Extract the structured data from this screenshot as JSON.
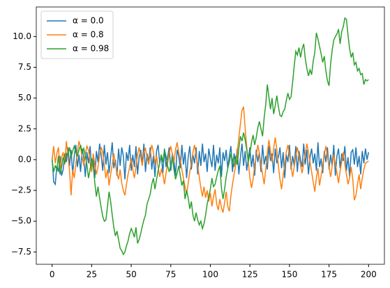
{
  "chart_data": {
    "type": "line",
    "x": [
      0,
      1,
      2,
      3,
      4,
      5,
      6,
      7,
      8,
      9,
      10,
      11,
      12,
      13,
      14,
      15,
      16,
      17,
      18,
      19,
      20,
      21,
      22,
      23,
      24,
      25,
      26,
      27,
      28,
      29,
      30,
      31,
      32,
      33,
      34,
      35,
      36,
      37,
      38,
      39,
      40,
      41,
      42,
      43,
      44,
      45,
      46,
      47,
      48,
      49,
      50,
      51,
      52,
      53,
      54,
      55,
      56,
      57,
      58,
      59,
      60,
      61,
      62,
      63,
      64,
      65,
      66,
      67,
      68,
      69,
      70,
      71,
      72,
      73,
      74,
      75,
      76,
      77,
      78,
      79,
      80,
      81,
      82,
      83,
      84,
      85,
      86,
      87,
      88,
      89,
      90,
      91,
      92,
      93,
      94,
      95,
      96,
      97,
      98,
      99,
      100,
      101,
      102,
      103,
      104,
      105,
      106,
      107,
      108,
      109,
      110,
      111,
      112,
      113,
      114,
      115,
      116,
      117,
      118,
      119,
      120,
      121,
      122,
      123,
      124,
      125,
      126,
      127,
      128,
      129,
      130,
      131,
      132,
      133,
      134,
      135,
      136,
      137,
      138,
      139,
      140,
      141,
      142,
      143,
      144,
      145,
      146,
      147,
      148,
      149,
      150,
      151,
      152,
      153,
      154,
      155,
      156,
      157,
      158,
      159,
      160,
      161,
      162,
      163,
      164,
      165,
      166,
      167,
      168,
      169,
      170,
      171,
      172,
      173,
      174,
      175,
      176,
      177,
      178,
      179,
      180,
      181,
      182,
      183,
      184,
      185,
      186,
      187,
      188,
      189,
      190,
      191,
      192,
      193,
      194,
      195,
      196,
      197,
      198,
      199,
      200
    ],
    "series": [
      {
        "name": "α = 0.0",
        "color": "#1f77b4",
        "values": [
          0.2,
          -1.8,
          -2.0,
          -0.5,
          -1.0,
          0.3,
          -1.3,
          -0.8,
          0.5,
          -0.2,
          1.0,
          -0.5,
          0.8,
          -1.2,
          0.3,
          1.2,
          -0.6,
          0.4,
          -1.0,
          0.9,
          0.2,
          -1.4,
          0.6,
          -0.3,
          1.1,
          -0.8,
          0.1,
          -1.5,
          0.7,
          -0.2,
          1.3,
          0.4,
          -0.9,
          1.2,
          -0.4,
          0.6,
          -1.1,
          0.2,
          1.4,
          -0.7,
          0.0,
          -1.3,
          0.9,
          -0.5,
          1.0,
          0.3,
          -1.6,
          0.6,
          -0.1,
          1.2,
          -0.9,
          0.4,
          -0.6,
          1.1,
          -1.2,
          0.2,
          0.8,
          -0.4,
          1.3,
          -1.0,
          0.5,
          -0.2,
          1.0,
          -0.8,
          0.3,
          -1.4,
          0.7,
          1.2,
          -0.3,
          0.4,
          -1.1,
          0.9,
          -0.6,
          0.2,
          1.0,
          -0.9,
          0.5,
          -0.1,
          -1.3,
          0.8,
          0.3,
          -0.7,
          1.2,
          -0.4,
          0.6,
          -1.5,
          0.2,
          1.1,
          -0.8,
          0.4,
          -0.3,
          1.0,
          -1.2,
          0.7,
          -0.5,
          1.3,
          -0.2,
          0.5,
          -1.0,
          0.9,
          0.1,
          -0.6,
          1.2,
          -0.9,
          0.4,
          -0.3,
          1.0,
          -1.4,
          0.6,
          -0.1,
          0.8,
          -0.7,
          0.3,
          1.1,
          -1.0,
          0.5,
          -0.4,
          0.9,
          -1.2,
          0.2,
          1.3,
          -0.5,
          0.7,
          -0.9,
          0.1,
          1.0,
          -0.6,
          0.4,
          -1.3,
          0.8,
          -0.2,
          0.6,
          -1.0,
          1.2,
          -0.4,
          0.3,
          -0.8,
          1.1,
          -0.1,
          0.5,
          -1.1,
          0.9,
          -0.3,
          0.2,
          1.0,
          -0.7,
          0.6,
          -1.5,
          0.4,
          -0.2,
          1.2,
          -0.8,
          0.3,
          -0.5,
          1.1,
          -1.0,
          0.7,
          0.0,
          -0.6,
          1.3,
          -0.4,
          0.8,
          -1.2,
          0.2,
          0.9,
          -0.3,
          0.5,
          -0.9,
          1.4,
          -0.6,
          0.1,
          -1.1,
          0.7,
          -0.2,
          1.0,
          -0.8,
          0.4,
          -0.5,
          1.2,
          -1.3,
          0.3,
          0.9,
          -0.7,
          0.5,
          -0.1,
          1.1,
          -0.9,
          0.2,
          -1.4,
          0.6,
          0.8,
          -0.4,
          1.0,
          -0.6,
          0.3,
          -1.2,
          0.7,
          -0.3,
          0.9,
          0.0,
          0.6
        ]
      },
      {
        "name": "α = 0.8",
        "color": "#ff7f0e",
        "values": [
          0.0,
          1.1,
          -0.3,
          0.5,
          1.0,
          -0.8,
          0.2,
          0.6,
          -0.4,
          1.5,
          0.3,
          -0.9,
          -2.9,
          -0.8,
          -1.5,
          -0.4,
          0.7,
          1.5,
          1.0,
          0.2,
          -0.5,
          0.4,
          1.1,
          0.8,
          -0.3,
          -1.0,
          0.5,
          -0.4,
          -1.2,
          -0.6,
          0.3,
          1.0,
          0.6,
          -0.5,
          -1.5,
          -0.8,
          -2.1,
          -1.2,
          -0.4,
          0.5,
          -0.3,
          -1.1,
          -1.6,
          -0.8,
          -1.9,
          -2.5,
          -2.9,
          -2.0,
          -1.2,
          -0.6,
          0.1,
          -0.8,
          -1.5,
          -0.6,
          0.4,
          1.0,
          0.2,
          -0.5,
          0.6,
          0.9,
          0.2,
          -0.4,
          0.5,
          1.2,
          0.6,
          -0.3,
          0.3,
          -0.6,
          -1.4,
          -0.8,
          -1.2,
          -2.0,
          -1.1,
          -0.3,
          0.5,
          1.1,
          0.4,
          -0.2,
          0.8,
          1.4,
          0.6,
          0.0,
          -0.8,
          -1.5,
          -2.2,
          -2.8,
          -1.9,
          -1.0,
          -0.3,
          0.6,
          1.2,
          0.4,
          -0.5,
          -1.4,
          -2.3,
          -3.0,
          -2.2,
          -3.1,
          -2.5,
          -3.4,
          -2.7,
          -3.8,
          -3.0,
          -2.4,
          -3.6,
          -4.1,
          -3.2,
          -3.9,
          -4.3,
          -3.5,
          -2.6,
          -3.8,
          -4.2,
          -2.9,
          -2.0,
          -1.2,
          -0.5,
          0.6,
          1.8,
          2.9,
          4.0,
          4.3,
          2.5,
          1.0,
          -0.2,
          -1.5,
          -2.3,
          -1.6,
          -0.5,
          0.3,
          1.2,
          0.5,
          -0.4,
          -1.2,
          -2.0,
          -0.8,
          0.5,
          1.6,
          0.7,
          -0.2,
          0.9,
          1.8,
          0.8,
          -0.5,
          -1.6,
          -2.4,
          -1.3,
          -0.4,
          0.6,
          1.2,
          0.4,
          -0.5,
          -1.4,
          -0.6,
          0.3,
          1.0,
          0.3,
          -0.5,
          -1.1,
          -0.3,
          0.5,
          1.3,
          0.6,
          -0.2,
          -1.0,
          -1.8,
          -2.6,
          -1.5,
          -0.7,
          -2.1,
          -1.3,
          -0.5,
          0.4,
          1.1,
          0.3,
          -0.6,
          -1.4,
          -0.5,
          0.4,
          -0.3,
          -1.1,
          -1.9,
          -0.9,
          -0.2,
          0.6,
          -0.4,
          -1.2,
          -2.0,
          -1.5,
          -0.6,
          -1.6,
          -3.3,
          -2.9,
          -2.0,
          -1.2,
          -2.4,
          -1.5,
          -0.8,
          -0.3,
          -0.2,
          -0.1
        ]
      },
      {
        "name": "α = 0.98",
        "color": "#2ca02c",
        "values": [
          0.0,
          -1.0,
          -0.5,
          -0.8,
          0.3,
          -1.2,
          -0.6,
          0.2,
          -0.3,
          0.5,
          0.4,
          1.0,
          0.2,
          0.7,
          1.1,
          0.6,
          0.3,
          0.8,
          1.2,
          0.5,
          0.9,
          0.3,
          -0.4,
          -1.5,
          -0.8,
          0.1,
          -0.5,
          -1.9,
          -3.0,
          -2.2,
          -3.1,
          -3.9,
          -4.6,
          -5.0,
          -4.9,
          -3.8,
          -2.6,
          -3.4,
          -4.5,
          -5.5,
          -6.2,
          -5.8,
          -6.5,
          -7.2,
          -7.4,
          -7.7,
          -7.5,
          -7.0,
          -6.6,
          -6.0,
          -5.6,
          -5.9,
          -6.3,
          -5.5,
          -6.8,
          -6.5,
          -6.0,
          -5.4,
          -4.9,
          -4.5,
          -3.6,
          -3.2,
          -2.8,
          -2.0,
          -1.5,
          -2.4,
          -1.6,
          -0.9,
          -0.3,
          0.4,
          -0.2,
          0.8,
          0.3,
          -0.5,
          -1.0,
          -0.4,
          0.2,
          -0.8,
          -1.6,
          -1.1,
          -0.5,
          -1.3,
          -2.1,
          -1.7,
          -3.2,
          -2.5,
          -3.1,
          -4.0,
          -3.4,
          -4.5,
          -5.0,
          -4.3,
          -4.9,
          -5.3,
          -5.0,
          -5.6,
          -5.2,
          -4.5,
          -3.6,
          -3.0,
          -2.4,
          -1.5,
          -2.2,
          -2.0,
          -1.4,
          -0.9,
          -0.5,
          -2.3,
          -3.2,
          -2.4,
          -1.4,
          -0.7,
          -0.2,
          0.5,
          0.0,
          -0.6,
          0.3,
          -0.4,
          0.9,
          1.9,
          1.5,
          2.2,
          1.6,
          0.8,
          -0.2,
          0.5,
          1.4,
          2.0,
          1.2,
          1.8,
          2.6,
          3.1,
          2.5,
          1.9,
          3.4,
          4.5,
          6.1,
          5.1,
          4.1,
          5.0,
          3.7,
          4.4,
          5.2,
          4.3,
          3.6,
          3.5,
          3.9,
          4.1,
          4.8,
          5.4,
          4.9,
          5.1,
          6.3,
          7.6,
          8.8,
          8.5,
          9.1,
          8.3,
          9.0,
          9.4,
          8.2,
          7.4,
          6.8,
          7.3,
          6.9,
          8.0,
          8.7,
          10.3,
          9.8,
          9.2,
          8.6,
          7.9,
          8.4,
          7.2,
          6.4,
          6.0,
          7.8,
          8.9,
          9.7,
          10.0,
          10.2,
          10.6,
          9.4,
          10.4,
          10.8,
          11.5,
          11.4,
          10.1,
          9.0,
          8.3,
          8.7,
          7.7,
          7.9,
          7.2,
          7.4,
          6.9,
          7.0,
          6.1,
          6.5,
          6.4,
          6.5
        ]
      }
    ],
    "xlim": [
      -10,
      210
    ],
    "xticks": [
      0,
      25,
      50,
      75,
      100,
      125,
      150,
      175,
      200
    ],
    "ylim": [
      -8.5,
      12.4
    ],
    "yticks": [
      {
        "value": -7.5,
        "label": "−7.5"
      },
      {
        "value": -5,
        "label": "−5.0"
      },
      {
        "value": -2.5,
        "label": "−2.5"
      },
      {
        "value": 0,
        "label": "0.0"
      },
      2.5,
      {
        "value": 5,
        "label": "5.0"
      },
      7.5,
      {
        "value": 10,
        "label": "10.0"
      }
    ],
    "legend": "upper left"
  }
}
